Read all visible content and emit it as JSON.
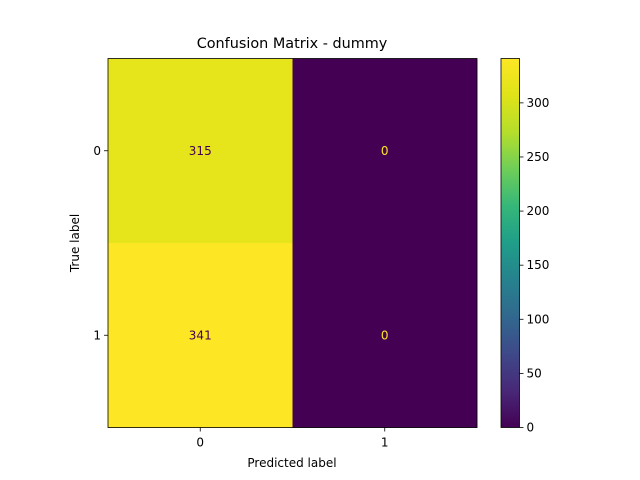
{
  "chart_data": {
    "type": "heatmap",
    "title": "Confusion Matrix - dummy",
    "xlabel": "Predicted label",
    "ylabel": "True label",
    "x_categories": [
      "0",
      "1"
    ],
    "y_categories": [
      "0",
      "1"
    ],
    "values": [
      [
        315,
        0
      ],
      [
        341,
        0
      ]
    ],
    "colormap": "viridis",
    "colorbar": {
      "min": 0,
      "max": 341,
      "ticks": [
        0,
        50,
        100,
        150,
        200,
        250,
        300
      ]
    },
    "cell_label_colors": {
      "on_dark": "#fde725",
      "on_light": "#440154"
    }
  }
}
